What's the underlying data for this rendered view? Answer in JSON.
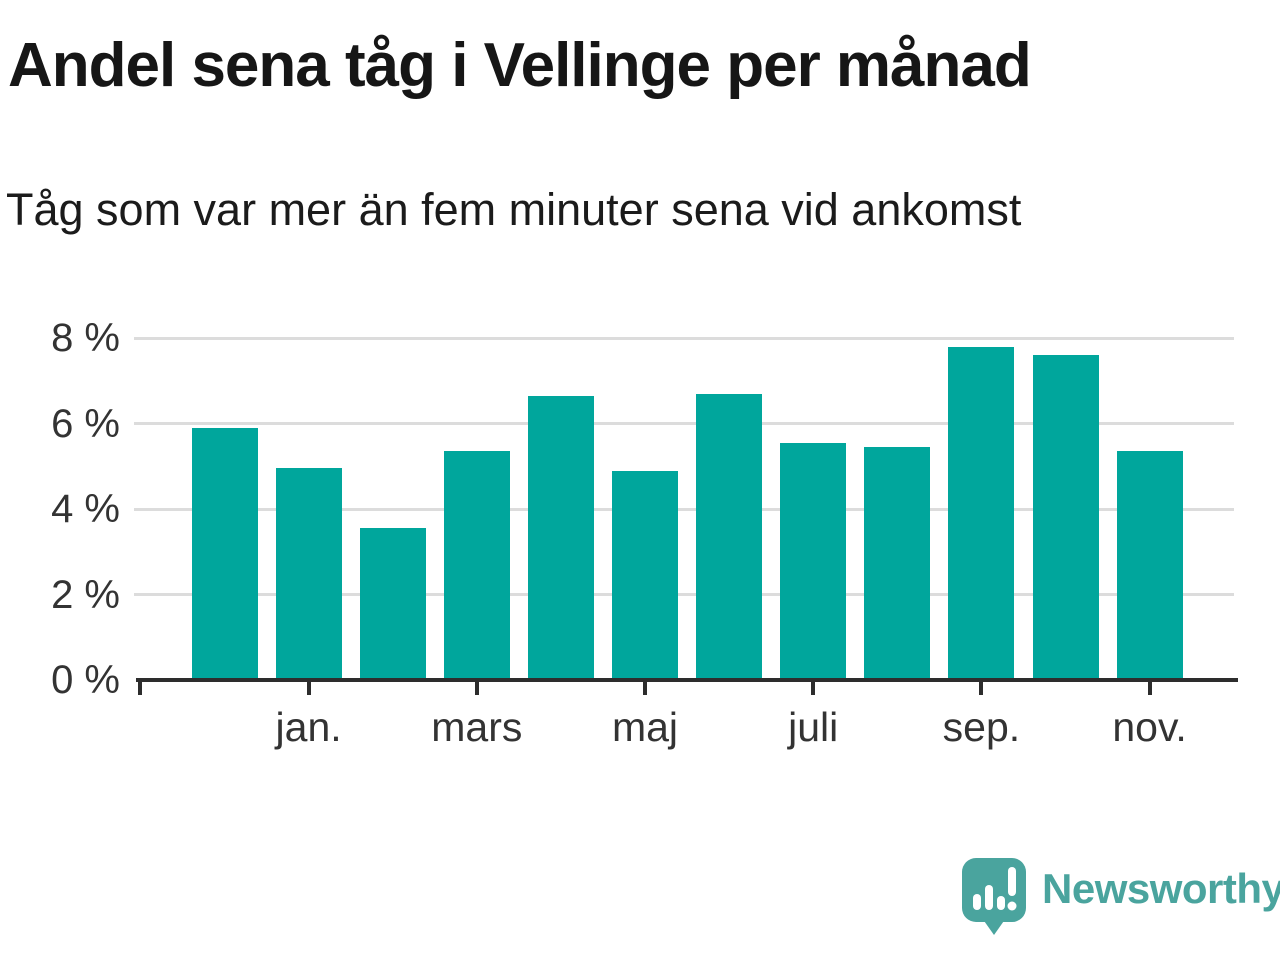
{
  "header": {
    "title": "Andel sena tåg i Vellinge per månad",
    "subtitle": "Tåg som var mer än fem minuter sena vid ankomst"
  },
  "chart_data": {
    "type": "bar",
    "title": "Andel sena tåg i Vellinge per månad",
    "subtitle": "Tåg som var mer än fem minuter sena vid ankomst",
    "categories": [
      "",
      "jan.",
      "",
      "mars",
      "",
      "maj",
      "",
      "juli",
      "",
      "sep.",
      "",
      "nov."
    ],
    "values": [
      5.9,
      4.95,
      3.55,
      5.35,
      6.65,
      4.9,
      6.7,
      5.55,
      5.45,
      7.8,
      7.6,
      5.35
    ],
    "unit": "%",
    "xlabel": "",
    "ylabel": "",
    "ylim": [
      0,
      8
    ],
    "y_ticks": [
      0,
      2,
      4,
      6,
      8
    ],
    "y_tick_labels": [
      "0 %",
      "2 %",
      "4 %",
      "6 %",
      "8 %"
    ],
    "x_tick_labels": [
      "jan.",
      "mars",
      "maj",
      "juli",
      "sep.",
      "nov."
    ],
    "grid": "horizontal",
    "legend": "none",
    "bar_color": "#00a69c"
  },
  "colors": {
    "bar": "#00a69c",
    "gridline": "#dcdcdc",
    "axis": "#2d2d2d",
    "tick_label": "#333333",
    "title_text": "#161616",
    "logo_teal": "#4aa49e"
  },
  "footer": {
    "logo_text": "Newsworthy"
  }
}
